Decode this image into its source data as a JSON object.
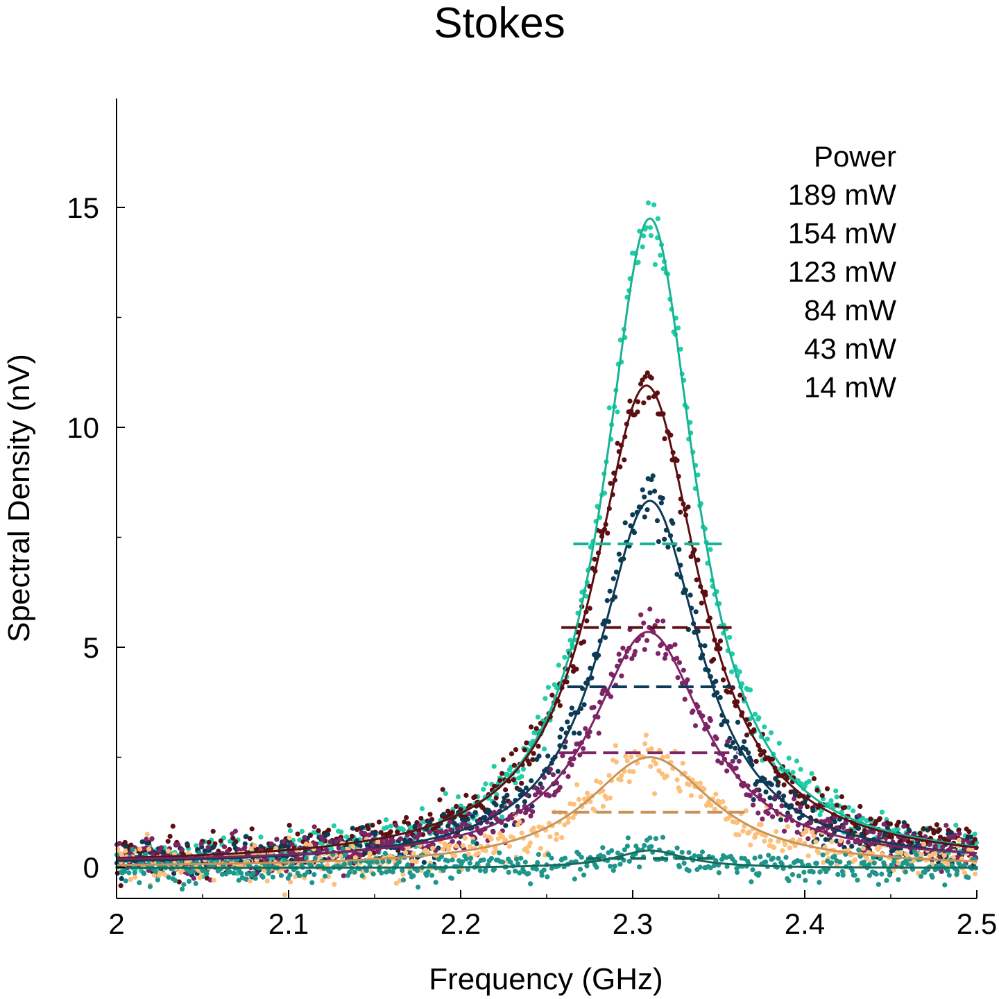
{
  "chart_data": {
    "type": "scatter",
    "title": "Stokes",
    "xlabel": "Frequency (GHz)",
    "ylabel": "Spectral Density (nV)",
    "xlim": [
      2.0,
      2.5
    ],
    "ylim": [
      -0.7,
      17.5
    ],
    "xticks": [
      "2",
      "2.1",
      "2.2",
      "2.3",
      "2.4",
      "2.5"
    ],
    "xtick_values": [
      2.0,
      2.1,
      2.2,
      2.3,
      2.4,
      2.5
    ],
    "yticks": [
      "0",
      "5",
      "10",
      "15"
    ],
    "ytick_values": [
      0,
      5,
      10,
      15
    ],
    "grid": false,
    "legend_title": "Power",
    "legend_placement": "top-right",
    "series": [
      {
        "name": "189 mW",
        "color": "#18b394",
        "point_color": "#1fcda6",
        "peak": 14.7,
        "center": 2.31,
        "fwhm": 0.065,
        "offset": 0.05,
        "noise": 0.2,
        "half_max_line": 7.35
      },
      {
        "name": "154 mW",
        "color": "#5c0f12",
        "point_color": "#5c0f12",
        "peak": 10.9,
        "center": 2.308,
        "fwhm": 0.075,
        "offset": 0.05,
        "noise": 0.22,
        "half_max_line": 5.45
      },
      {
        "name": "123 mW",
        "color": "#0d3a55",
        "point_color": "#0d3a55",
        "peak": 8.3,
        "center": 2.31,
        "fwhm": 0.072,
        "offset": 0.03,
        "noise": 0.22,
        "half_max_line": 4.1
      },
      {
        "name": "84 mW",
        "color": "#7c2466",
        "point_color": "#7c2466",
        "peak": 5.25,
        "center": 2.309,
        "fwhm": 0.08,
        "offset": 0.1,
        "noise": 0.22,
        "half_max_line": 2.6
      },
      {
        "name": "43 mW",
        "color": "#c8935a",
        "point_color": "#fdc07a",
        "peak": 2.5,
        "center": 2.31,
        "fwhm": 0.09,
        "offset": 0.0,
        "noise": 0.22,
        "half_max_line": 1.25
      },
      {
        "name": "14 mW",
        "color": "#156a5c",
        "point_color": "#1e968c",
        "peak": 0.4,
        "center": 2.31,
        "fwhm": 0.05,
        "offset": -0.02,
        "noise": 0.16,
        "half_max_line": 0.2
      }
    ]
  }
}
